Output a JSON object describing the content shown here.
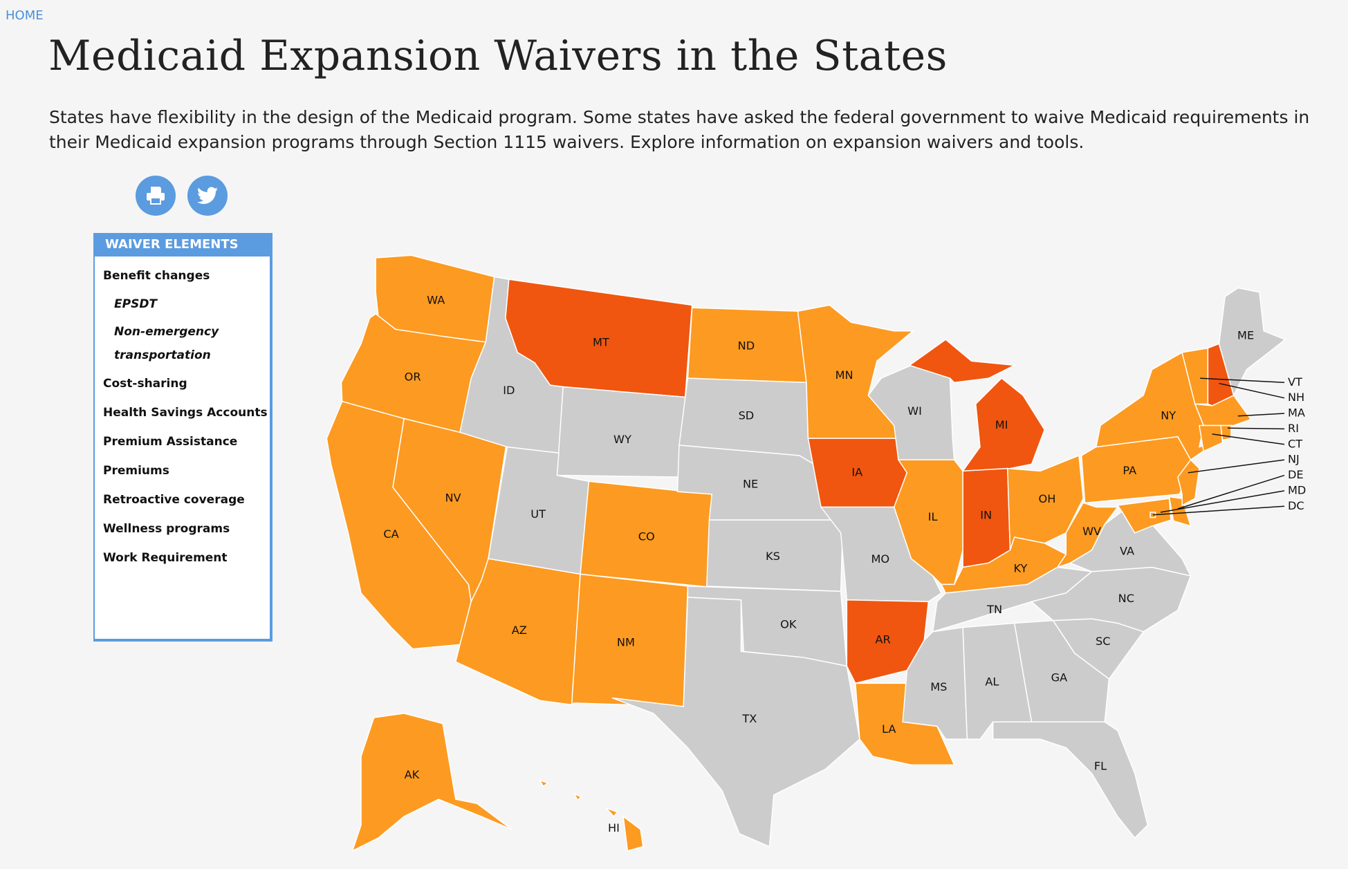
{
  "nav": {
    "home": "HOME"
  },
  "header": {
    "title": "Medicaid Expansion Waivers in the States",
    "intro": "States have flexibility in the design of the Medicaid program. Some states have asked the federal government to waive Medicaid requirements in their Medicaid expansion programs through Section 1115 waivers. Explore information on expansion waivers and tools."
  },
  "share": {
    "print_icon": "print-icon",
    "twitter_icon": "twitter-icon",
    "color": "#5b9bdf"
  },
  "panel": {
    "title": "WAIVER ELEMENTS",
    "items": [
      {
        "label": "Benefit changes",
        "sub": false
      },
      {
        "label": "EPSDT",
        "sub": true
      },
      {
        "label": "Non-emergency transportation",
        "sub": true
      },
      {
        "label": "Cost-sharing",
        "sub": false
      },
      {
        "label": "Health Savings Accounts",
        "sub": false
      },
      {
        "label": "Premium Assistance",
        "sub": false
      },
      {
        "label": "Premiums",
        "sub": false
      },
      {
        "label": "Retroactive coverage",
        "sub": false
      },
      {
        "label": "Wellness programs",
        "sub": false
      },
      {
        "label": "Work Requirement",
        "sub": false
      }
    ]
  },
  "map": {
    "colors": {
      "dark": "#f0560f",
      "light": "#fd9a21",
      "gray": "#cccccc"
    },
    "states": {
      "WA": "light",
      "OR": "light",
      "CA": "light",
      "NV": "light",
      "ID": "gray",
      "MT": "dark",
      "WY": "gray",
      "UT": "gray",
      "CO": "light",
      "AZ": "light",
      "NM": "light",
      "ND": "light",
      "SD": "gray",
      "NE": "gray",
      "KS": "gray",
      "OK": "gray",
      "TX": "gray",
      "MN": "light",
      "IA": "dark",
      "MO": "gray",
      "AR": "dark",
      "LA": "light",
      "WI": "gray",
      "IL": "light",
      "MI": "dark",
      "IN": "dark",
      "OH": "light",
      "KY": "light",
      "WV": "light",
      "TN": "gray",
      "MS": "gray",
      "AL": "gray",
      "GA": "gray",
      "FL": "gray",
      "SC": "gray",
      "NC": "gray",
      "VA": "gray",
      "MD": "light",
      "DE": "light",
      "DC": "light",
      "PA": "light",
      "NJ": "light",
      "NY": "light",
      "VT": "light",
      "NH": "dark",
      "ME": "gray",
      "MA": "light",
      "CT": "light",
      "RI": "light",
      "AK": "light",
      "HI": "light"
    }
  }
}
